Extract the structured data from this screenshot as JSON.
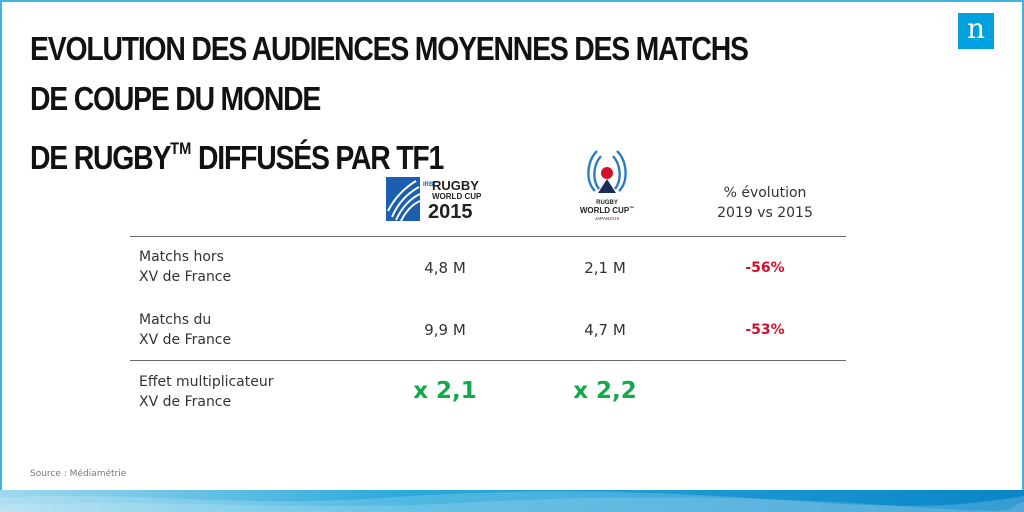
{
  "slide": {
    "title_line1": "Evolution des audiences moyennes des matchs de Coupe du Monde",
    "title_line2_prefix": "de Rugby",
    "title_line2_tm": "TM",
    "title_line2_suffix": " diffusés par TF1",
    "brand_letter": "n",
    "source": "Source : Médiamétrie"
  },
  "logos": {
    "rwc2015": {
      "irb": "IRB",
      "rugby": "RUGBY",
      "world_cup": "WORLD CUP",
      "year": "2015"
    },
    "rwc2019": {
      "rugby": "RUGBY",
      "world_cup": "WORLD CUP",
      "tm": "™",
      "japan": "JAPAN",
      "year": "2019"
    }
  },
  "chart_data": {
    "type": "table",
    "columns": [
      "Rugby World Cup 2015",
      "Rugby World Cup 2019",
      "% évolution 2019 vs 2015"
    ],
    "evolution_header_line1": "% évolution",
    "evolution_header_line2": "2019 vs 2015",
    "rows": [
      {
        "label_line1": "Matchs hors",
        "label_line2": "XV de France",
        "v2015": "4,8 M",
        "v2019": "2,1 M",
        "evolution": "-56%"
      },
      {
        "label_line1": "Matchs du",
        "label_line2": "XV de France",
        "v2015": "9,9 M",
        "v2019": "4,7 M",
        "evolution": "-53%"
      },
      {
        "label_line1": "Effet multiplicateur",
        "label_line2": "XV de France",
        "v2015": "x 2,1",
        "v2019": "x 2,2",
        "evolution": ""
      }
    ]
  },
  "colors": {
    "accent_blue": "#00a1df",
    "negative_red": "#d0112b",
    "positive_green": "#13a84a"
  }
}
